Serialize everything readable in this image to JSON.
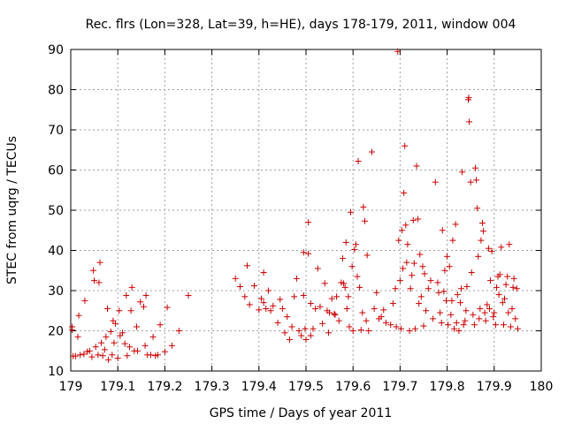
{
  "chart_data": {
    "type": "scatter",
    "title": "Rec. flrs (Lon=328, Lat=39, h=HE), days 178-179, 2011, window 004",
    "xlabel": "GPS time / Days of year 2011",
    "ylabel": "STEC from uqrg / TECUs",
    "xlim": [
      179,
      180
    ],
    "ylim": [
      10,
      90
    ],
    "xticks": [
      179,
      179.1,
      179.2,
      179.3,
      179.4,
      179.5,
      179.6,
      179.7,
      179.8,
      179.9,
      180
    ],
    "xtick_labels": [
      "179",
      "179.1",
      "179.2",
      "179.3",
      "179.4",
      "179.5",
      "179.6",
      "179.7",
      "179.8",
      "179.9",
      "180"
    ],
    "yticks": [
      10,
      20,
      30,
      40,
      50,
      60,
      70,
      80,
      90
    ],
    "ytick_labels": [
      "10",
      "20",
      "30",
      "40",
      "50",
      "60",
      "70",
      "80",
      "90"
    ],
    "grid": true,
    "marker": "+",
    "color": "#cc0000",
    "series": [
      {
        "name": "STEC",
        "points": [
          [
            179.003,
            21.0
          ],
          [
            179.003,
            20.2
          ],
          [
            179.005,
            13.7
          ],
          [
            179.01,
            13.7
          ],
          [
            179.015,
            18.5
          ],
          [
            179.017,
            23.8
          ],
          [
            179.02,
            14.0
          ],
          [
            179.028,
            14.2
          ],
          [
            179.03,
            27.5
          ],
          [
            179.035,
            14.8
          ],
          [
            179.04,
            15.0
          ],
          [
            179.045,
            13.5
          ],
          [
            179.048,
            35.0
          ],
          [
            179.05,
            32.5
          ],
          [
            179.053,
            16.0
          ],
          [
            179.058,
            14.0
          ],
          [
            179.06,
            32.0
          ],
          [
            179.062,
            37.0
          ],
          [
            179.065,
            17.0
          ],
          [
            179.068,
            13.8
          ],
          [
            179.072,
            15.3
          ],
          [
            179.075,
            18.5
          ],
          [
            179.078,
            25.5
          ],
          [
            179.08,
            12.8
          ],
          [
            179.085,
            19.8
          ],
          [
            179.088,
            14.0
          ],
          [
            179.09,
            22.5
          ],
          [
            179.092,
            17.0
          ],
          [
            179.095,
            21.8
          ],
          [
            179.1,
            13.2
          ],
          [
            179.103,
            25.0
          ],
          [
            179.105,
            18.8
          ],
          [
            179.11,
            19.5
          ],
          [
            179.115,
            16.8
          ],
          [
            179.118,
            28.8
          ],
          [
            179.12,
            13.8
          ],
          [
            179.125,
            16.0
          ],
          [
            179.128,
            25.0
          ],
          [
            179.13,
            30.8
          ],
          [
            179.135,
            15.0
          ],
          [
            179.14,
            21.0
          ],
          [
            179.142,
            15.0
          ],
          [
            179.148,
            27.2
          ],
          [
            179.155,
            26.0
          ],
          [
            179.158,
            16.3
          ],
          [
            179.16,
            28.8
          ],
          [
            179.163,
            14.0
          ],
          [
            179.17,
            14.0
          ],
          [
            179.175,
            18.5
          ],
          [
            179.18,
            13.8
          ],
          [
            179.185,
            14.0
          ],
          [
            179.19,
            21.5
          ],
          [
            179.2,
            14.8
          ],
          [
            179.205,
            25.8
          ],
          [
            179.215,
            16.3
          ],
          [
            179.23,
            20.0
          ],
          [
            179.25,
            28.8
          ],
          [
            179.35,
            33.0
          ],
          [
            179.36,
            31.0
          ],
          [
            179.37,
            28.5
          ],
          [
            179.375,
            36.2
          ],
          [
            179.38,
            26.5
          ],
          [
            179.39,
            31.2
          ],
          [
            179.4,
            25.2
          ],
          [
            179.405,
            28.0
          ],
          [
            179.41,
            34.5
          ],
          [
            179.41,
            27.0
          ],
          [
            179.415,
            25.5
          ],
          [
            179.42,
            30.0
          ],
          [
            179.425,
            25.0
          ],
          [
            179.43,
            26.2
          ],
          [
            179.44,
            22.0
          ],
          [
            179.445,
            27.8
          ],
          [
            179.45,
            25.5
          ],
          [
            179.455,
            19.5
          ],
          [
            179.46,
            23.5
          ],
          [
            179.465,
            17.8
          ],
          [
            179.47,
            21.0
          ],
          [
            179.475,
            28.5
          ],
          [
            179.48,
            33.0
          ],
          [
            179.485,
            20.0
          ],
          [
            179.49,
            18.8
          ],
          [
            179.495,
            28.8
          ],
          [
            179.495,
            39.5
          ],
          [
            179.498,
            20.5
          ],
          [
            179.5,
            17.8
          ],
          [
            179.505,
            39.2
          ],
          [
            179.505,
            47.0
          ],
          [
            179.51,
            26.8
          ],
          [
            179.51,
            18.8
          ],
          [
            179.515,
            20.5
          ],
          [
            179.52,
            25.5
          ],
          [
            179.525,
            35.5
          ],
          [
            179.53,
            26.0
          ],
          [
            179.535,
            21.8
          ],
          [
            179.54,
            31.8
          ],
          [
            179.545,
            25.0
          ],
          [
            179.548,
            19.5
          ],
          [
            179.55,
            24.5
          ],
          [
            179.555,
            28.0
          ],
          [
            179.56,
            24.2
          ],
          [
            179.562,
            24.0
          ],
          [
            179.565,
            28.5
          ],
          [
            179.57,
            22.5
          ],
          [
            179.575,
            32.0
          ],
          [
            179.578,
            38.0
          ],
          [
            179.58,
            31.8
          ],
          [
            179.583,
            30.8
          ],
          [
            179.585,
            42.0
          ],
          [
            179.587,
            25.5
          ],
          [
            179.59,
            28.5
          ],
          [
            179.592,
            21.0
          ],
          [
            179.595,
            49.5
          ],
          [
            179.598,
            36.0
          ],
          [
            179.6,
            20.0
          ],
          [
            179.603,
            40.2
          ],
          [
            179.606,
            41.5
          ],
          [
            179.609,
            33.5
          ],
          [
            179.611,
            62.2
          ],
          [
            179.614,
            30.8
          ],
          [
            179.617,
            20.2
          ],
          [
            179.62,
            24.5
          ],
          [
            179.622,
            50.8
          ],
          [
            179.625,
            47.3
          ],
          [
            179.628,
            22.5
          ],
          [
            179.63,
            38.8
          ],
          [
            179.633,
            20.0
          ],
          [
            179.64,
            64.5
          ],
          [
            179.645,
            25.5
          ],
          [
            179.65,
            29.5
          ],
          [
            179.655,
            23.0
          ],
          [
            179.66,
            23.5
          ],
          [
            179.665,
            25.2
          ],
          [
            179.67,
            22.0
          ],
          [
            179.68,
            21.5
          ],
          [
            179.685,
            26.8
          ],
          [
            179.69,
            30.5
          ],
          [
            179.692,
            21.0
          ],
          [
            179.695,
            89.5
          ],
          [
            179.697,
            42.5
          ],
          [
            179.7,
            32.5
          ],
          [
            179.702,
            20.5
          ],
          [
            179.704,
            45.0
          ],
          [
            179.706,
            35.5
          ],
          [
            179.708,
            54.3
          ],
          [
            179.71,
            66.0
          ],
          [
            179.712,
            46.3
          ],
          [
            179.714,
            37.0
          ],
          [
            179.716,
            41.5
          ],
          [
            179.72,
            20.0
          ],
          [
            179.722,
            30.5
          ],
          [
            179.725,
            33.8
          ],
          [
            179.728,
            47.5
          ],
          [
            179.73,
            36.8
          ],
          [
            179.732,
            20.5
          ],
          [
            179.735,
            61.0
          ],
          [
            179.738,
            47.8
          ],
          [
            179.74,
            26.8
          ],
          [
            179.742,
            39.0
          ],
          [
            179.745,
            28.5
          ],
          [
            179.748,
            36.0
          ],
          [
            179.75,
            21.2
          ],
          [
            179.752,
            34.2
          ],
          [
            179.755,
            25.0
          ],
          [
            179.76,
            30.5
          ],
          [
            179.765,
            32.5
          ],
          [
            179.77,
            23.0
          ],
          [
            179.775,
            57.0
          ],
          [
            179.78,
            32.0
          ],
          [
            179.782,
            29.5
          ],
          [
            179.785,
            24.5
          ],
          [
            179.788,
            22.0
          ],
          [
            179.79,
            45.0
          ],
          [
            179.793,
            29.8
          ],
          [
            179.795,
            35.0
          ],
          [
            179.798,
            27.5
          ],
          [
            179.8,
            38.5
          ],
          [
            179.802,
            21.5
          ],
          [
            179.805,
            36.0
          ],
          [
            179.808,
            24.0
          ],
          [
            179.81,
            27.5
          ],
          [
            179.812,
            42.5
          ],
          [
            179.815,
            20.5
          ],
          [
            179.818,
            46.5
          ],
          [
            179.82,
            22.0
          ],
          [
            179.822,
            29.0
          ],
          [
            179.825,
            20.0
          ],
          [
            179.828,
            27.0
          ],
          [
            179.83,
            30.5
          ],
          [
            179.832,
            59.5
          ],
          [
            179.835,
            21.5
          ],
          [
            179.838,
            22.5
          ],
          [
            179.84,
            25.0
          ],
          [
            179.842,
            31.0
          ],
          [
            179.845,
            77.5
          ],
          [
            179.846,
            78.0
          ],
          [
            179.847,
            72.0
          ],
          [
            179.85,
            57.0
          ],
          [
            179.852,
            34.5
          ],
          [
            179.855,
            24.0
          ],
          [
            179.858,
            21.5
          ],
          [
            179.86,
            60.5
          ],
          [
            179.862,
            57.5
          ],
          [
            179.864,
            50.5
          ],
          [
            179.866,
            38.5
          ],
          [
            179.868,
            23.0
          ],
          [
            179.87,
            25.5
          ],
          [
            179.872,
            42.5
          ],
          [
            179.875,
            46.8
          ],
          [
            179.877,
            44.8
          ],
          [
            179.88,
            24.5
          ],
          [
            179.882,
            22.5
          ],
          [
            179.885,
            26.5
          ],
          [
            179.888,
            40.5
          ],
          [
            179.89,
            25.5
          ],
          [
            179.892,
            32.5
          ],
          [
            179.895,
            39.8
          ],
          [
            179.898,
            23.5
          ],
          [
            179.9,
            24.5
          ],
          [
            179.903,
            21.5
          ],
          [
            179.905,
            30.8
          ],
          [
            179.908,
            33.5
          ],
          [
            179.91,
            29.0
          ],
          [
            179.912,
            34.0
          ],
          [
            179.915,
            40.8
          ],
          [
            179.918,
            27.0
          ],
          [
            179.92,
            21.5
          ],
          [
            179.922,
            28.0
          ],
          [
            179.925,
            31.5
          ],
          [
            179.928,
            33.5
          ],
          [
            179.93,
            24.5
          ],
          [
            179.932,
            41.5
          ],
          [
            179.935,
            21.0
          ],
          [
            179.938,
            25.5
          ],
          [
            179.94,
            30.8
          ],
          [
            179.942,
            33.0
          ],
          [
            179.945,
            23.0
          ],
          [
            179.948,
            30.5
          ],
          [
            179.95,
            20.5
          ]
        ]
      }
    ]
  }
}
